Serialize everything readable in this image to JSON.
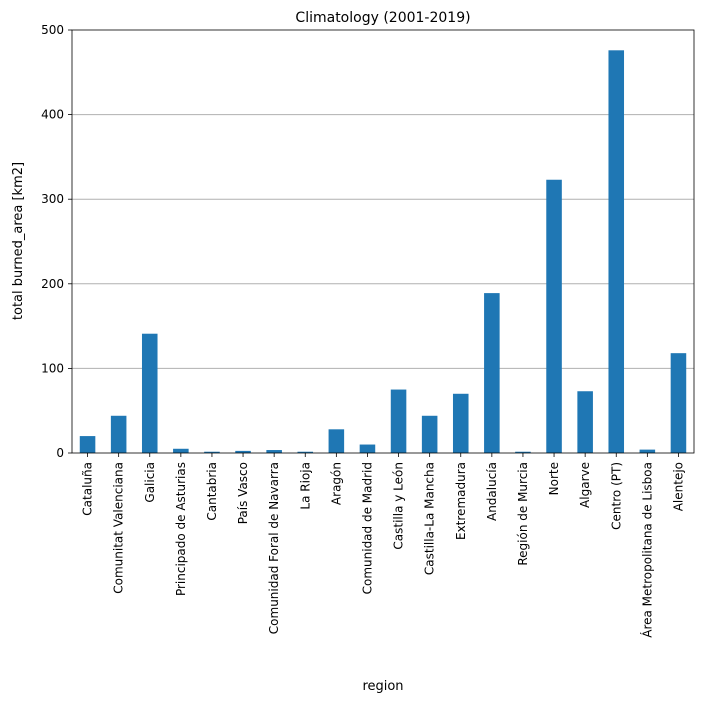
{
  "chart_data": {
    "type": "bar",
    "title": "Climatology (2001-2019)",
    "xlabel": "region",
    "ylabel": "total burned_area [km2]",
    "ylim": [
      0,
      500
    ],
    "yticks": [
      0,
      100,
      200,
      300,
      400,
      500
    ],
    "grid": "horizontal",
    "legend": "none",
    "bar_color": "#1f77b4",
    "categories": [
      "Cataluña",
      "Comunitat Valenciana",
      "Galicia",
      "Principado de Asturias",
      "Cantabria",
      "País Vasco",
      "Comunidad Foral de Navarra",
      "La Rioja",
      "Aragón",
      "Comunidad de Madrid",
      "Castilla y León",
      "Castilla-La Mancha",
      "Extremadura",
      "Andalucía",
      "Región de Murcia",
      "Norte",
      "Algarve",
      "Centro (PT)",
      "Área Metropolitana de Lisboa",
      "Alentejo"
    ],
    "values": [
      20,
      44,
      141,
      5,
      1.5,
      2.5,
      3.5,
      1.5,
      28,
      10,
      75,
      44,
      70,
      189,
      1.5,
      323,
      73,
      476,
      4,
      118
    ]
  }
}
